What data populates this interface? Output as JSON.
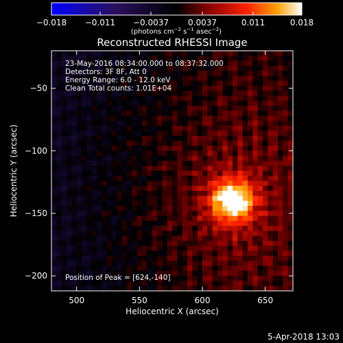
{
  "chart_data": {
    "type": "heatmap",
    "title": "Reconstructed RHESSI Image",
    "xlabel": "Heliocentric X (arcsec)",
    "ylabel": "Heliocentric Y (arcsec)",
    "xlim": [
      480,
      672
    ],
    "ylim": [
      -212,
      -20
    ],
    "x_ticks": [
      500,
      550,
      600,
      650
    ],
    "y_ticks": [
      -50,
      -100,
      -150,
      -200
    ],
    "colorbar": {
      "label_prefix": "(photons cm",
      "label_exp1": "−2",
      "label_mid": " s",
      "label_exp2": "−1",
      "label_mid2": " asec",
      "label_exp3": "−2",
      "label_suffix": ")",
      "min": -0.018,
      "max": 0.018,
      "tick_values": [
        -0.018,
        -0.011,
        -0.0037,
        0.0037,
        0.011,
        0.018
      ],
      "tick_labels": [
        "−0.018",
        "−0.011",
        "−0.0037",
        "0.0037",
        "0.011",
        "0.018"
      ]
    },
    "peak": {
      "x": 624,
      "y": -140
    },
    "info_lines": [
      "23-May-2016 08:34:00.000 to 08:37:32.000",
      "Detectors: 3F 8F, Att 0",
      "Energy Range: 6.0 - 12.0 keV",
      "Clean     Total counts: 1.01E+04"
    ],
    "peak_text": "Position of Peak = [624,-140]"
  },
  "timestamp": "5-Apr-2018 13:03"
}
